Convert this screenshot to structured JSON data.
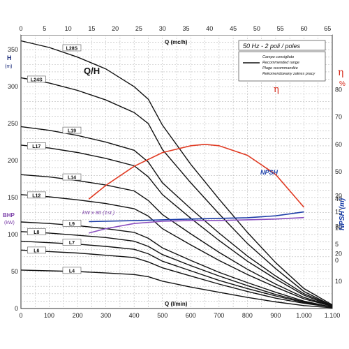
{
  "chart_data": {
    "type": "line",
    "title": "Q/H",
    "frequency_label": "50 Hz - 2 poli / poles",
    "q_top_label": "Q (mc/h)",
    "q_bottom_label": "Q (l/min)",
    "h_axis_label": "H",
    "h_axis_unit": "(m)",
    "bhp_label": "BHP",
    "bhp_unit": "(kW)",
    "eta_label": "η",
    "eta_unit": "%",
    "npsh_axis_label": "NPSH (m)",
    "eta_curve_label": "η",
    "npsh_curve_label": "NPSH",
    "power_curve_label": "kW x 80 (1st.)",
    "legend_lines": [
      "Campo consigliato",
      "Recommended range",
      "Plage recommandée",
      "Rekomendowany zakres pracy"
    ],
    "x_bottom_ticks": [
      "0",
      "100",
      "200",
      "300",
      "400",
      "500",
      "600",
      "700",
      "800",
      "900",
      "1.000",
      "1.100"
    ],
    "x_top_ticks": [
      "0",
      "5",
      "10",
      "15",
      "20",
      "25",
      "30",
      "35",
      "40",
      "45",
      "50",
      "55",
      "60",
      "65"
    ],
    "y_left_ticks": [
      "0",
      "50",
      "100",
      "150",
      "200",
      "250",
      "300",
      "350"
    ],
    "y_right_eta_ticks": [
      "10",
      "20",
      "30",
      "40",
      "50",
      "60",
      "70",
      "80"
    ],
    "y_right_npsh_ticks": [
      "0",
      "5",
      "10",
      "15",
      "20"
    ],
    "xlim_lmin": [
      0,
      1100
    ],
    "ylim_m": [
      0,
      370
    ],
    "eta_lim": [
      0,
      100
    ],
    "npsh_lim": [
      -15,
      70
    ],
    "series": [
      {
        "name": "L28S",
        "x": [
          0,
          100,
          200,
          300,
          400,
          450,
          500,
          600,
          700,
          800,
          900,
          1000,
          1100
        ],
        "y": [
          362,
          353,
          340,
          324,
          300,
          283,
          248,
          195,
          148,
          103,
          62,
          27,
          5
        ]
      },
      {
        "name": "L24S",
        "x": [
          0,
          100,
          200,
          300,
          400,
          450,
          500,
          600,
          700,
          800,
          900,
          1000,
          1100
        ],
        "y": [
          312,
          305,
          295,
          282,
          265,
          250,
          215,
          170,
          128,
          88,
          54,
          23,
          4
        ]
      },
      {
        "name": "L19",
        "x": [
          0,
          100,
          200,
          300,
          400,
          450,
          500,
          600,
          700,
          800,
          900,
          1000,
          1100
        ],
        "y": [
          246,
          241,
          234,
          225,
          214,
          198,
          170,
          135,
          102,
          71,
          44,
          20,
          4
        ]
      },
      {
        "name": "L17",
        "x": [
          0,
          100,
          200,
          300,
          400,
          450,
          500,
          600,
          700,
          800,
          900,
          1000,
          1100
        ],
        "y": [
          221,
          217,
          211,
          203,
          193,
          178,
          154,
          122,
          92,
          64,
          40,
          18,
          3
        ]
      },
      {
        "name": "L14",
        "x": [
          0,
          100,
          200,
          300,
          400,
          450,
          500,
          600,
          700,
          800,
          900,
          1000,
          1100
        ],
        "y": [
          181,
          178,
          173,
          167,
          159,
          146,
          127,
          101,
          76,
          53,
          33,
          15,
          3
        ]
      },
      {
        "name": "L12",
        "x": [
          0,
          100,
          200,
          300,
          400,
          450,
          500,
          600,
          700,
          800,
          900,
          1000,
          1100
        ],
        "y": [
          154,
          151,
          147,
          142,
          135,
          125,
          108,
          86,
          65,
          46,
          29,
          13,
          3
        ]
      },
      {
        "name": "L9",
        "x": [
          0,
          100,
          200,
          300,
          400,
          450,
          500,
          600,
          700,
          800,
          900,
          1000,
          1100
        ],
        "y": [
          117,
          115,
          112,
          108,
          103,
          95,
          82,
          65,
          49,
          35,
          22,
          10,
          2
        ]
      },
      {
        "name": "L8",
        "x": [
          0,
          100,
          200,
          300,
          400,
          450,
          500,
          600,
          700,
          800,
          900,
          1000,
          1100
        ],
        "y": [
          104,
          102,
          99,
          96,
          91,
          84,
          73,
          58,
          44,
          31,
          19,
          9,
          2
        ]
      },
      {
        "name": "L7",
        "x": [
          0,
          100,
          200,
          300,
          400,
          450,
          500,
          600,
          700,
          800,
          900,
          1000,
          1100
        ],
        "y": [
          91,
          89,
          87,
          84,
          80,
          74,
          64,
          51,
          38,
          27,
          17,
          8,
          2
        ]
      },
      {
        "name": "L6",
        "x": [
          0,
          100,
          200,
          300,
          400,
          450,
          500,
          600,
          700,
          800,
          900,
          1000,
          1100
        ],
        "y": [
          79,
          77,
          75,
          72,
          69,
          63,
          55,
          44,
          33,
          23,
          14,
          7,
          2
        ]
      },
      {
        "name": "L4",
        "x": [
          0,
          100,
          200,
          300,
          400,
          450,
          500,
          600,
          700,
          800,
          900,
          1000,
          1100
        ],
        "y": [
          52,
          51,
          50,
          48,
          46,
          43,
          37,
          29,
          22,
          15,
          9,
          4,
          1
        ]
      }
    ],
    "eta_curve": {
      "x": [
        240,
        300,
        400,
        500,
        600,
        650,
        700,
        800,
        900,
        1000
      ],
      "y": [
        40,
        45,
        52,
        57,
        59.5,
        60,
        59.5,
        56,
        49,
        37
      ]
    },
    "npsh_curve": {
      "x": [
        240,
        400,
        600,
        800,
        900,
        1000
      ],
      "y": [
        12,
        12.3,
        12.8,
        13.2,
        13.8,
        15
      ]
    },
    "power_curve": {
      "x": [
        240,
        300,
        400,
        500,
        600,
        700,
        800,
        900,
        1000
      ],
      "y": [
        102,
        108,
        115,
        118,
        119,
        119,
        120,
        121,
        123
      ]
    }
  }
}
